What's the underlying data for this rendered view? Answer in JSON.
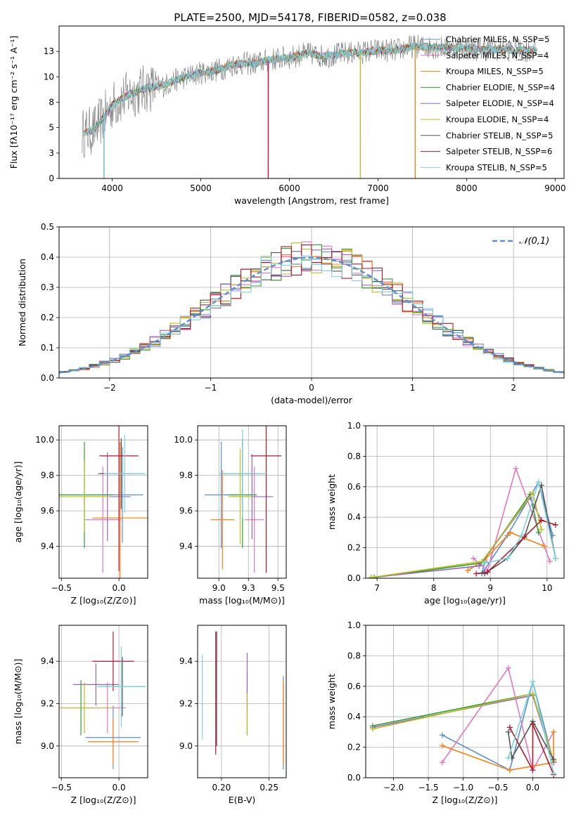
{
  "figure": {
    "title": "PLATE=2500, MJD=54178, FIBERID=0582, z=0.038"
  },
  "colors": [
    "#5b8fd6",
    "#e377c2",
    "#ff7f0e",
    "#2ca02c",
    "#9467bd",
    "#bcbd22",
    "#555555",
    "#b2182b",
    "#7fd3dc"
  ],
  "chart_data": [
    {
      "id": "spectrum",
      "type": "line",
      "title": "PLATE=2500, MJD=54178, FIBERID=0582, z=0.038",
      "xlabel": "wavelength [Angstrom, rest frame]",
      "ylabel": "Flux [fλ10⁻¹⁷ erg cm⁻² s⁻¹ A⁻¹]",
      "xlim": [
        3400,
        9100
      ],
      "ylim": [
        0,
        15
      ],
      "xticks": [
        4000,
        5000,
        6000,
        7000,
        8000,
        9000
      ],
      "yticks": [
        0.0,
        2.5,
        5.0,
        7.5,
        10.0,
        12.5
      ],
      "legend": "top-right",
      "data_x": [
        3700,
        3800,
        3900,
        4000,
        4100,
        4200,
        4300,
        4400,
        4500,
        4600,
        4700,
        4800,
        5000,
        5200,
        5400,
        5600,
        5800,
        6000,
        6200,
        6400,
        6600,
        6800,
        7000,
        7200,
        7400,
        7600,
        7800,
        8000,
        8200,
        8400,
        8600,
        8800
      ],
      "data_y": [
        4.5,
        4.8,
        6.0,
        7.2,
        7.8,
        8.3,
        8.6,
        8.9,
        9.0,
        9.2,
        9.6,
        9.9,
        10.4,
        10.7,
        11.3,
        11.3,
        11.7,
        11.9,
        12.3,
        12.0,
        12.3,
        12.4,
        12.6,
        12.6,
        13.0,
        12.9,
        12.9,
        12.8,
        12.7,
        12.7,
        12.6,
        12.6
      ],
      "series": [
        {
          "name": "Chabrier MILES, N_SSP=5"
        },
        {
          "name": "Salpeter MILES, N_SSP=4"
        },
        {
          "name": "Kroupa MILES, N_SSP=5"
        },
        {
          "name": "Chabrier ELODIE, N_SSP=4"
        },
        {
          "name": "Salpeter ELODIE, N_SSP=4"
        },
        {
          "name": "Kroupa ELODIE, N_SSP=4"
        },
        {
          "name": "Chabrier STELIB, N_SSP=5"
        },
        {
          "name": "Salpeter STELIB, N_SSP=6"
        },
        {
          "name": "Kroupa STELIB, N_SSP=5"
        }
      ],
      "dropouts": [
        3910,
        5760,
        6800,
        7420
      ]
    },
    {
      "id": "residuals",
      "type": "step",
      "xlabel": "(data-model)/error",
      "ylabel": "Normed distribution",
      "xlim": [
        -2.5,
        2.5
      ],
      "ylim": [
        0,
        0.5
      ],
      "xticks": [
        -2,
        -1,
        0,
        1,
        2
      ],
      "yticks": [
        0.0,
        0.1,
        0.2,
        0.3,
        0.4,
        0.5
      ],
      "grid": true,
      "legend": "top-right",
      "reference": {
        "name": "𝒩(0,1)",
        "mu": 0,
        "sigma": 1
      }
    },
    {
      "id": "age_vs_Z",
      "type": "errorbar",
      "xlabel": "Z [log₁₀(Z/Z⊙)]",
      "ylabel": "age  [log₁₀(age/yr)]",
      "xlim": [
        -0.52,
        0.25
      ],
      "ylim": [
        9.22,
        10.08
      ],
      "xticks": [
        -0.5,
        0.0
      ],
      "yticks": [
        9.4,
        9.6,
        9.8,
        10.0
      ],
      "grid": true,
      "points": [
        {
          "x": 0.03,
          "y": 9.69,
          "xerr": 0.18,
          "yerr": 0.27
        },
        {
          "x": -0.14,
          "y": 9.55,
          "xerr": 0.16,
          "yerr": 0.3
        },
        {
          "x": 0.01,
          "y": 9.56,
          "xerr": 0.24,
          "yerr": 0.43
        },
        {
          "x": -0.3,
          "y": 9.69,
          "xerr": 0.25,
          "yerr": 0.3
        },
        {
          "x": -0.1,
          "y": 9.68,
          "xerr": 0.2,
          "yerr": 0.25
        },
        {
          "x": -0.3,
          "y": 9.68,
          "xerr": 0.22,
          "yerr": 0.2
        },
        {
          "x": 0.02,
          "y": 9.81,
          "xerr": 0.2,
          "yerr": 0.2
        },
        {
          "x": 0.0,
          "y": 9.91,
          "xerr": 0.17,
          "yerr": 0.65
        },
        {
          "x": 0.05,
          "y": 9.81,
          "xerr": 0.18,
          "yerr": 0.22
        }
      ]
    },
    {
      "id": "age_vs_mass",
      "type": "errorbar",
      "xlabel": "mass [log₁₀(M/M⊙)]",
      "ylabel": "",
      "xlim": [
        8.82,
        9.57
      ],
      "ylim": [
        9.22,
        10.08
      ],
      "xticks": [
        9.0,
        9.25,
        9.5
      ],
      "yticks": [
        9.4,
        9.6,
        9.8,
        10.0
      ],
      "grid": true,
      "points": [
        {
          "x": 9.02,
          "y": 9.69,
          "xerr": 0.14,
          "yerr": 0.3
        },
        {
          "x": 9.3,
          "y": 9.55,
          "xerr": 0.08,
          "yerr": 0.3
        },
        {
          "x": 9.03,
          "y": 9.55,
          "xerr": 0.1,
          "yerr": 0.28
        },
        {
          "x": 9.2,
          "y": 9.69,
          "xerr": 0.12,
          "yerr": 0.3
        },
        {
          "x": 9.28,
          "y": 9.68,
          "xerr": 0.18,
          "yerr": 0.24
        },
        {
          "x": 9.18,
          "y": 9.68,
          "xerr": 0.1,
          "yerr": 0.27
        },
        {
          "x": 9.2,
          "y": 9.81,
          "xerr": 0.18,
          "yerr": 0.2
        },
        {
          "x": 9.4,
          "y": 9.91,
          "xerr": 0.13,
          "yerr": 0.66
        },
        {
          "x": 9.2,
          "y": 9.81,
          "xerr": 0.2,
          "yerr": 0.25
        }
      ]
    },
    {
      "id": "weight_vs_age",
      "type": "line",
      "xlabel": "age  [log₁₀(age/yr)]",
      "ylabel": "mass weight",
      "xlim": [
        6.8,
        10.3
      ],
      "ylim": [
        0.0,
        1.0
      ],
      "xticks": [
        7,
        8,
        9,
        10
      ],
      "yticks": [
        0.0,
        0.2,
        0.4,
        0.6,
        0.8,
        1.0
      ],
      "grid": true,
      "series": [
        {
          "x": [
            8.9,
            8.85,
            9.3,
            9.85,
            10.1
          ],
          "y": [
            0.11,
            0.03,
            0.28,
            0.63,
            0.28
          ]
        },
        {
          "x": [
            8.7,
            8.95,
            9.45,
            10.05
          ],
          "y": [
            0.13,
            0.05,
            0.72,
            0.11
          ]
        },
        {
          "x": [
            8.6,
            8.9,
            9.35,
            9.95
          ],
          "y": [
            0.05,
            0.12,
            0.3,
            0.21
          ]
        },
        {
          "x": [
            6.95,
            8.85,
            9.7,
            9.85
          ],
          "y": [
            0.005,
            0.1,
            0.55,
            0.3
          ]
        },
        {
          "x": [
            6.9,
            8.8,
            9.7,
            9.9
          ],
          "y": [
            0.005,
            0.08,
            0.53,
            0.38
          ]
        },
        {
          "x": [
            6.9,
            8.85,
            9.75,
            9.9
          ],
          "y": [
            0.005,
            0.11,
            0.56,
            0.32
          ]
        },
        {
          "x": [
            8.9,
            9.3,
            9.6,
            9.9,
            10.15
          ],
          "y": [
            0.03,
            0.13,
            0.27,
            0.61,
            0.13
          ]
        },
        {
          "x": [
            8.75,
            8.95,
            9.6,
            9.9,
            10.15
          ],
          "y": [
            0.03,
            0.04,
            0.27,
            0.38,
            0.35
          ]
        },
        {
          "x": [
            8.9,
            9.3,
            9.55,
            9.85,
            10.15
          ],
          "y": [
            0.1,
            0.13,
            0.28,
            0.63,
            0.13
          ]
        }
      ]
    },
    {
      "id": "mass_vs_Z",
      "type": "errorbar",
      "xlabel": "Z [log₁₀(Z/Z⊙)]",
      "ylabel": "mass [log₁₀(M/M⊙)]",
      "xlim": [
        -0.52,
        0.25
      ],
      "ylim": [
        8.85,
        9.57
      ],
      "xticks": [
        -0.5,
        0.0
      ],
      "yticks": [
        9.0,
        9.2,
        9.4
      ],
      "grid": true,
      "points": [
        {
          "x": -0.05,
          "y": 9.04,
          "xerr": 0.24,
          "yerr": 0.15
        },
        {
          "x": -0.1,
          "y": 9.18,
          "xerr": 0.16,
          "yerr": 0.12
        },
        {
          "x": -0.05,
          "y": 9.02,
          "xerr": 0.22,
          "yerr": 0.11
        },
        {
          "x": -0.33,
          "y": 9.18,
          "xerr": 0.15,
          "yerr": 0.13
        },
        {
          "x": -0.2,
          "y": 9.29,
          "xerr": 0.2,
          "yerr": 0.1
        },
        {
          "x": -0.3,
          "y": 9.18,
          "xerr": 0.25,
          "yerr": 0.12
        },
        {
          "x": 0.03,
          "y": 9.28,
          "xerr": 0.2,
          "yerr": 0.14
        },
        {
          "x": -0.05,
          "y": 9.4,
          "xerr": 0.18,
          "yerr": 0.14
        },
        {
          "x": 0.02,
          "y": 9.28,
          "xerr": 0.21,
          "yerr": 0.19
        }
      ]
    },
    {
      "id": "mass_vs_EBV",
      "type": "errorbar",
      "xlabel": "E(B-V)",
      "ylabel": "",
      "xlim": [
        0.175,
        0.268
      ],
      "ylim": [
        8.85,
        9.57
      ],
      "xticks": [
        0.2,
        0.25
      ],
      "yticks": [
        9.0,
        9.2,
        9.4
      ],
      "grid": true,
      "points": [
        {
          "x": 0.265,
          "y": 9.11,
          "xerr": 0,
          "yerr": 0.22
        },
        {
          "x": 0.265,
          "y": 9.11,
          "xerr": 0,
          "yerr": 0.18
        },
        {
          "x": 0.265,
          "y": 9.11,
          "xerr": 0,
          "yerr": 0.2
        },
        {
          "x": 0.227,
          "y": 9.2,
          "xerr": 0,
          "yerr": 0.15
        },
        {
          "x": 0.227,
          "y": 9.3,
          "xerr": 0,
          "yerr": 0.14
        },
        {
          "x": 0.227,
          "y": 9.15,
          "xerr": 0,
          "yerr": 0.1
        },
        {
          "x": 0.195,
          "y": 9.27,
          "xerr": 0,
          "yerr": 0.27
        },
        {
          "x": 0.194,
          "y": 9.25,
          "xerr": 0,
          "yerr": 0.29
        },
        {
          "x": 0.18,
          "y": 9.23,
          "xerr": 0,
          "yerr": 0.2
        }
      ]
    },
    {
      "id": "weight_vs_Z",
      "type": "line",
      "xlabel": "Z [log₁₀(Z/Z⊙)]",
      "ylabel": "mass weight",
      "xlim": [
        -2.4,
        0.45
      ],
      "ylim": [
        0.0,
        1.0
      ],
      "xticks": [
        -2.0,
        -1.5,
        -1.0,
        -0.5,
        0.0
      ],
      "yticks": [
        0.0,
        0.2,
        0.4,
        0.6,
        0.8,
        1.0
      ],
      "grid": true,
      "series": [
        {
          "x": [
            -1.3,
            -0.33,
            0.0,
            0.3
          ],
          "y": [
            0.28,
            0.05,
            0.63,
            0.1
          ]
        },
        {
          "x": [
            -1.3,
            -0.35,
            0.0,
            0.3
          ],
          "y": [
            0.1,
            0.72,
            0.05,
            0.3
          ]
        },
        {
          "x": [
            -1.3,
            -0.33,
            0.3,
            0.3
          ],
          "y": [
            0.21,
            0.05,
            0.1,
            0.3
          ]
        },
        {
          "x": [
            -2.3,
            0.0,
            0.3
          ],
          "y": [
            0.34,
            0.55,
            0.1
          ]
        },
        {
          "x": [
            -2.3,
            0.0,
            0.3
          ],
          "y": [
            0.33,
            0.54,
            0.1
          ]
        },
        {
          "x": [
            -2.3,
            0.0,
            0.3
          ],
          "y": [
            0.32,
            0.55,
            0.11
          ]
        },
        {
          "x": [
            -0.35,
            -0.3,
            0.0,
            0.3
          ],
          "y": [
            0.3,
            0.13,
            0.37,
            0.12
          ]
        },
        {
          "x": [
            -0.33,
            0.0,
            0.0,
            0.3
          ],
          "y": [
            0.33,
            0.05,
            0.35,
            0.02
          ]
        },
        {
          "x": [
            -0.35,
            0.0,
            0.3
          ],
          "y": [
            0.13,
            0.63,
            0.03
          ]
        }
      ]
    }
  ]
}
